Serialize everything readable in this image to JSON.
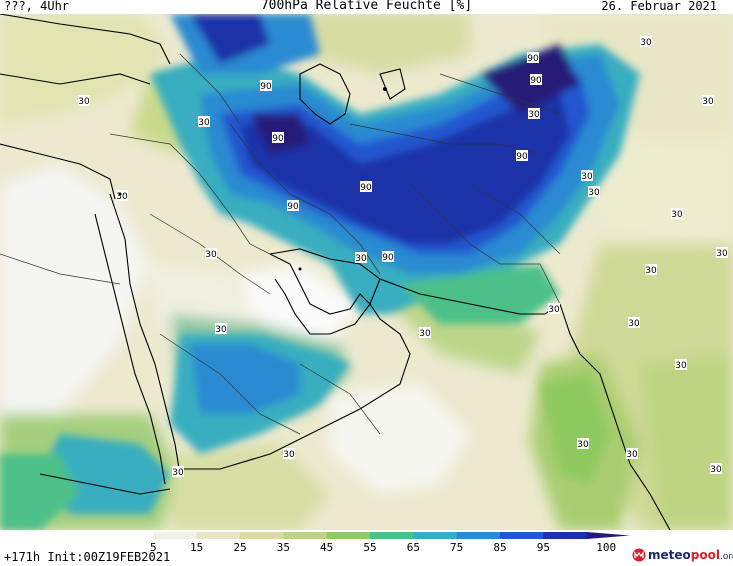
{
  "header": {
    "left": "???, 4Uhr",
    "title": "700hPa Relative Feuchte [%]",
    "date": "26. Februar 2021"
  },
  "footer": {
    "run_info": "+171h Init:00Z19FEB2021",
    "logo": {
      "part1": "meteo",
      "part2": "pool",
      "part3": ".org"
    }
  },
  "legend": {
    "ticks": [
      "5",
      "15",
      "25",
      "35",
      "45",
      "55",
      "65",
      "75",
      "85",
      "95",
      "100"
    ],
    "colors": [
      "#ffffff",
      "#f2f1e6",
      "#e7e4c6",
      "#d9dba0",
      "#bfd282",
      "#8fca60",
      "#4dc08a",
      "#37aec0",
      "#2b8ad2",
      "#2457cf",
      "#1f32a8",
      "#261a78"
    ]
  },
  "contour_labels": [
    {
      "id": "c1",
      "text": "30"
    },
    {
      "id": "c2",
      "text": "30"
    },
    {
      "id": "c3",
      "text": "90"
    },
    {
      "id": "c4",
      "text": "90"
    },
    {
      "id": "c5",
      "text": "90"
    },
    {
      "id": "c6",
      "text": "90"
    },
    {
      "id": "c7",
      "text": "90"
    },
    {
      "id": "c8",
      "text": "90"
    },
    {
      "id": "c9",
      "text": "90"
    },
    {
      "id": "c10",
      "text": "90"
    },
    {
      "id": "c11",
      "text": "30"
    },
    {
      "id": "c12",
      "text": "30"
    },
    {
      "id": "c13",
      "text": "30"
    },
    {
      "id": "c14",
      "text": "30"
    },
    {
      "id": "c15",
      "text": "30"
    },
    {
      "id": "c16",
      "text": "30"
    },
    {
      "id": "c17",
      "text": "30"
    },
    {
      "id": "c18",
      "text": "30"
    },
    {
      "id": "c19",
      "text": "30"
    },
    {
      "id": "c20",
      "text": "30"
    },
    {
      "id": "c21",
      "text": "30"
    },
    {
      "id": "c22",
      "text": "30"
    },
    {
      "id": "c23",
      "text": "30"
    },
    {
      "id": "c24",
      "text": "30"
    },
    {
      "id": "c25",
      "text": "30"
    },
    {
      "id": "c26",
      "text": "30"
    },
    {
      "id": "c27",
      "text": "30"
    },
    {
      "id": "c28",
      "text": "30"
    },
    {
      "id": "c29",
      "text": "30"
    },
    {
      "id": "c30",
      "text": "30"
    },
    {
      "id": "c31",
      "text": "30"
    }
  ]
}
